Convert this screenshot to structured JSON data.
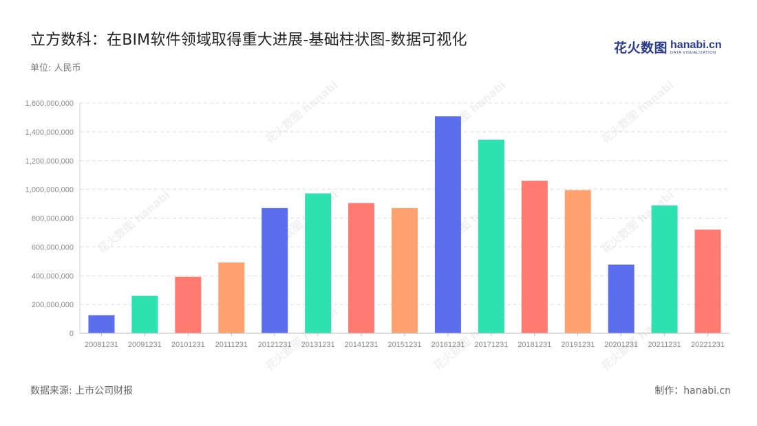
{
  "header": {
    "title": "立方数科：在BIM软件领域取得重大进展-基础柱状图-数据可视化",
    "subtitle": "单位: 人民币"
  },
  "logo": {
    "cn": "花火数图",
    "en": "hanabi.cn",
    "tagline": "DATA VISUALIZATION"
  },
  "footer": {
    "source": "数据来源: 上市公司财报",
    "credit": "制作：hanabi.cn"
  },
  "colors": [
    "#5b6fee",
    "#2de2b0",
    "#ff7a70",
    "#ffa270"
  ],
  "chart_data": {
    "type": "bar",
    "title": "立方数科：在BIM软件领域取得重大进展-基础柱状图-数据可视化",
    "xlabel": "",
    "ylabel": "",
    "unit": "单位: 人民币",
    "categories": [
      "20081231",
      "20091231",
      "20101231",
      "20111231",
      "20121231",
      "20131231",
      "20141231",
      "20151231",
      "20161231",
      "20171231",
      "20181231",
      "20191231",
      "20201231",
      "20211231",
      "20221231"
    ],
    "values": [
      125000000,
      260000000,
      393000000,
      492000000,
      870000000,
      972000000,
      905000000,
      870000000,
      1508000000,
      1345000000,
      1060000000,
      995000000,
      477000000,
      888000000,
      720000000
    ],
    "yticks": [
      "0",
      "200,000,000",
      "400,000,000",
      "600,000,000",
      "800,000,000",
      "1,000,000,000",
      "1,200,000,000",
      "1,400,000,000",
      "1,600,000,000"
    ],
    "ylim": [
      0,
      1600000000
    ],
    "grid": true,
    "legend": "none"
  }
}
